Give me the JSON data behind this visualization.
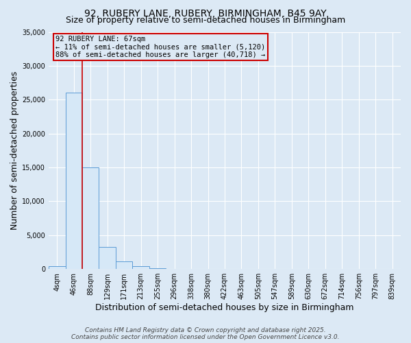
{
  "title_line1": "92, RUBERY LANE, RUBERY, BIRMINGHAM, B45 9AY",
  "title_line2": "Size of property relative to semi-detached houses in Birmingham",
  "xlabel": "Distribution of semi-detached houses by size in Birmingham",
  "ylabel": "Number of semi-detached properties",
  "categories": [
    "4sqm",
    "46sqm",
    "88sqm",
    "129sqm",
    "171sqm",
    "213sqm",
    "255sqm",
    "296sqm",
    "338sqm",
    "380sqm",
    "422sqm",
    "463sqm",
    "505sqm",
    "547sqm",
    "589sqm",
    "630sqm",
    "672sqm",
    "714sqm",
    "756sqm",
    "797sqm",
    "839sqm"
  ],
  "bar_heights": [
    400,
    26000,
    15000,
    3200,
    1100,
    400,
    150,
    50,
    5,
    5,
    5,
    5,
    5,
    5,
    5,
    5,
    5,
    5,
    5,
    5,
    5
  ],
  "bar_color": "#d6e8f7",
  "bar_edge_color": "#5b9bd5",
  "ylim": [
    0,
    35000
  ],
  "yticks": [
    0,
    5000,
    10000,
    15000,
    20000,
    25000,
    30000,
    35000
  ],
  "red_line_x": 1.5,
  "red_line_color": "#cc0000",
  "annotation_text_line1": "92 RUBERY LANE: 67sqm",
  "annotation_text_line2": "← 11% of semi-detached houses are smaller (5,120)",
  "annotation_text_line3": "88% of semi-detached houses are larger (40,718) →",
  "annotation_box_edgecolor": "#cc0000",
  "background_color": "#dce9f5",
  "plot_bg_color": "#dce9f5",
  "grid_color": "#ffffff",
  "footer_line1": "Contains HM Land Registry data © Crown copyright and database right 2025.",
  "footer_line2": "Contains public sector information licensed under the Open Government Licence v3.0.",
  "title_fontsize": 10,
  "subtitle_fontsize": 9,
  "axis_label_fontsize": 9,
  "tick_fontsize": 7,
  "annotation_fontsize": 7.5,
  "footer_fontsize": 6.5
}
